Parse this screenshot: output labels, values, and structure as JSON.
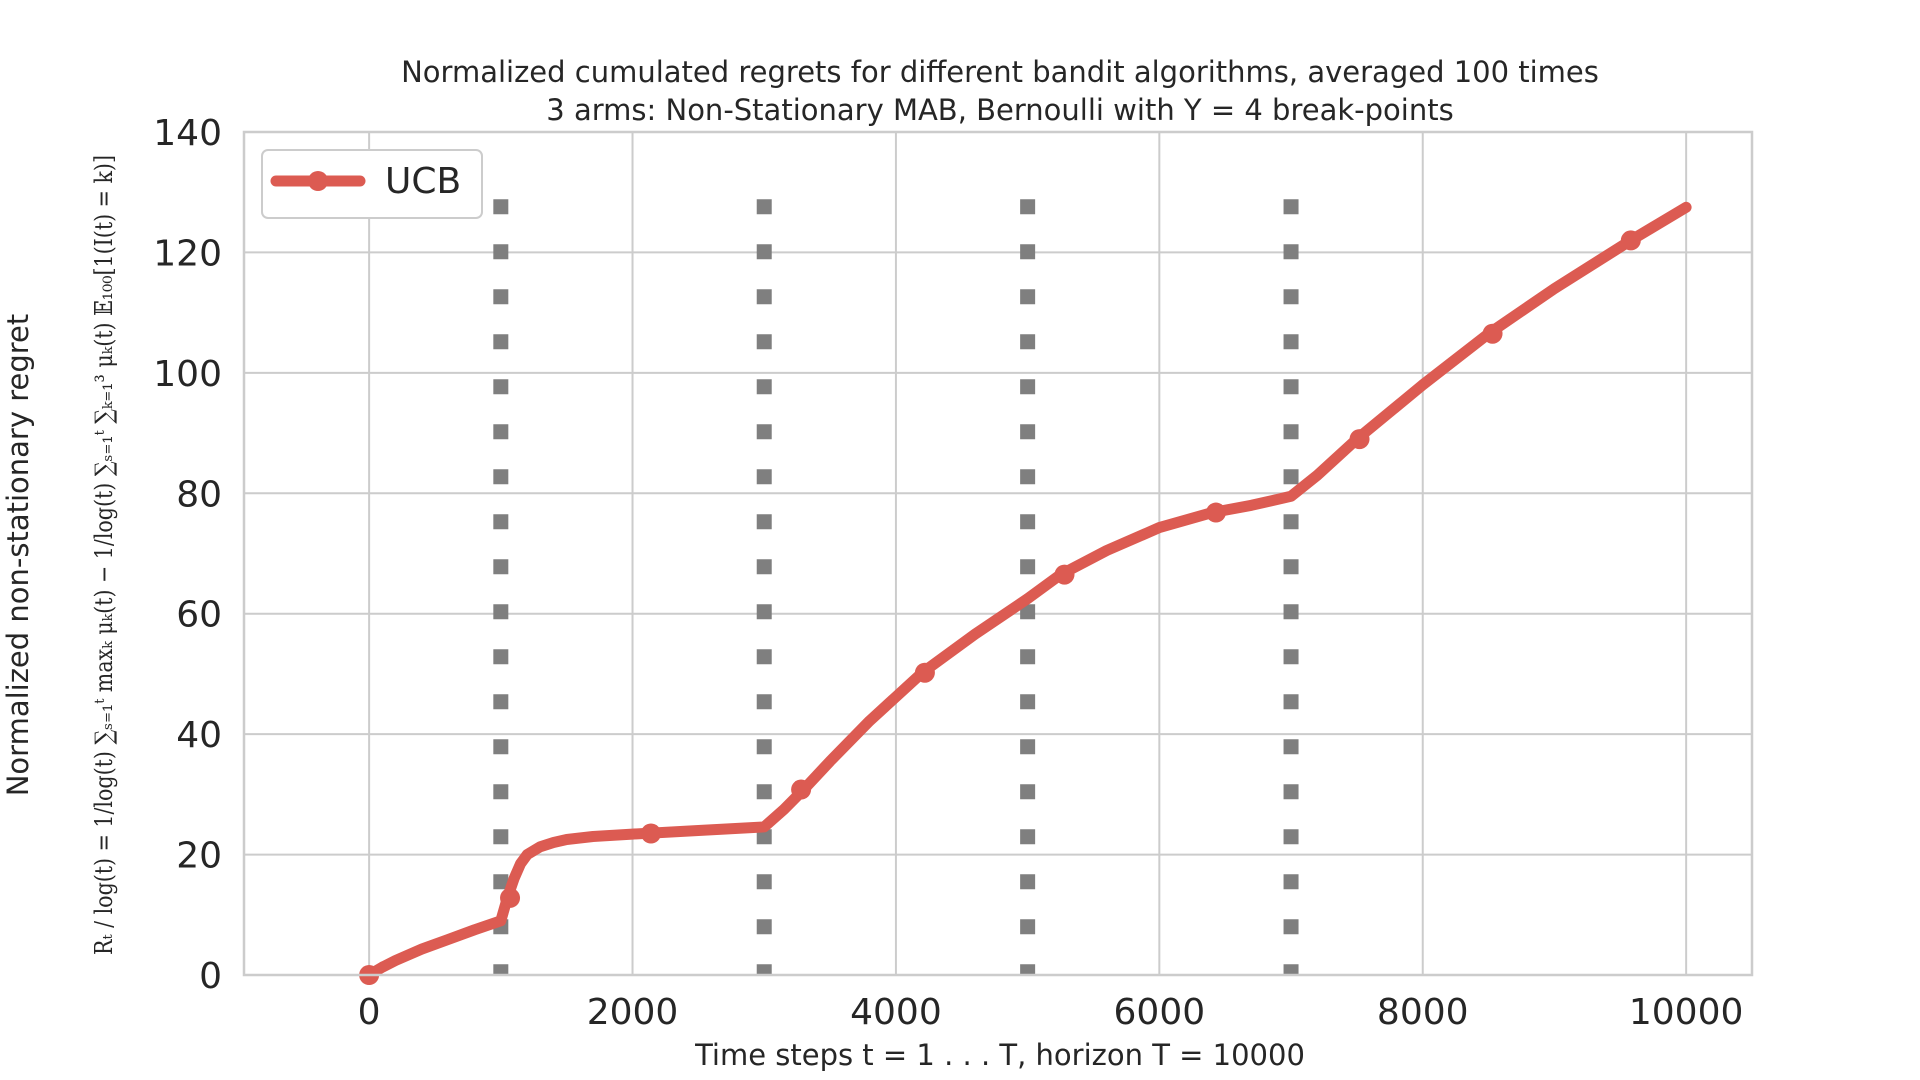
{
  "chart_data": {
    "type": "line",
    "title_line1": "Normalized cumulated regrets for different bandit algorithms, averaged 100 times",
    "title_line2": "3 arms: Non-Stationary MAB, Bernoulli with Υ = 4 break-points",
    "xlabel": "Time steps t = 1 . . . T, horizon T = 10000",
    "ylabel_line1": "Normalized non-stationary regret",
    "ylabel_formula": "Rₜ / log(t) = 1/log(t) ∑ₛ₌₁ᵗ maxₖ μₖ(t) − 1/log(t) ∑ₛ₌₁ᵗ ∑ₖ₌₁³ μₖ(t) 𝔼₁₀₀[1(I(t) = k)]",
    "xlim": [
      -950,
      10500
    ],
    "ylim": [
      0,
      140
    ],
    "xticks": [
      0,
      2000,
      4000,
      6000,
      8000,
      10000
    ],
    "xtick_labels": [
      "0",
      "2000",
      "4000",
      "6000",
      "8000",
      "10000"
    ],
    "yticks": [
      0,
      20,
      40,
      60,
      80,
      100,
      120,
      140
    ],
    "ytick_labels": [
      "0",
      "20",
      "40",
      "60",
      "80",
      "100",
      "120",
      "140"
    ],
    "grid": true,
    "legend_position": "top-left",
    "break_points": [
      1000,
      3000,
      5000,
      7000
    ],
    "series": [
      {
        "name": "UCB",
        "color": "#dc5b52",
        "x": [
          0,
          100,
          200,
          400,
          600,
          800,
          1000,
          1050,
          1100,
          1150,
          1200,
          1300,
          1400,
          1500,
          1700,
          2000,
          2500,
          3000,
          3150,
          3300,
          3500,
          3800,
          4200,
          4600,
          5000,
          5250,
          5600,
          6000,
          6400,
          6700,
          7000,
          7200,
          7500,
          8000,
          8500,
          9000,
          9580,
          10000
        ],
        "y": [
          0,
          1.3,
          2.4,
          4.3,
          5.9,
          7.5,
          9.0,
          12.8,
          16.0,
          18.5,
          20.0,
          21.3,
          22.0,
          22.5,
          23.0,
          23.4,
          24.0,
          24.6,
          27.5,
          30.8,
          35.5,
          42.2,
          50.2,
          56.6,
          62.5,
          66.5,
          70.5,
          74.3,
          76.8,
          78.0,
          79.5,
          83.0,
          89.0,
          98.0,
          106.5,
          114.0,
          122.0,
          127.5
        ]
      }
    ],
    "markers": {
      "x": [
        0,
        1070,
        2140,
        3280,
        4220,
        5280,
        6430,
        7520,
        8530,
        9580
      ],
      "y": [
        0,
        12.8,
        23.5,
        30.8,
        50.2,
        66.5,
        76.8,
        89.0,
        106.5,
        122.0
      ]
    }
  }
}
